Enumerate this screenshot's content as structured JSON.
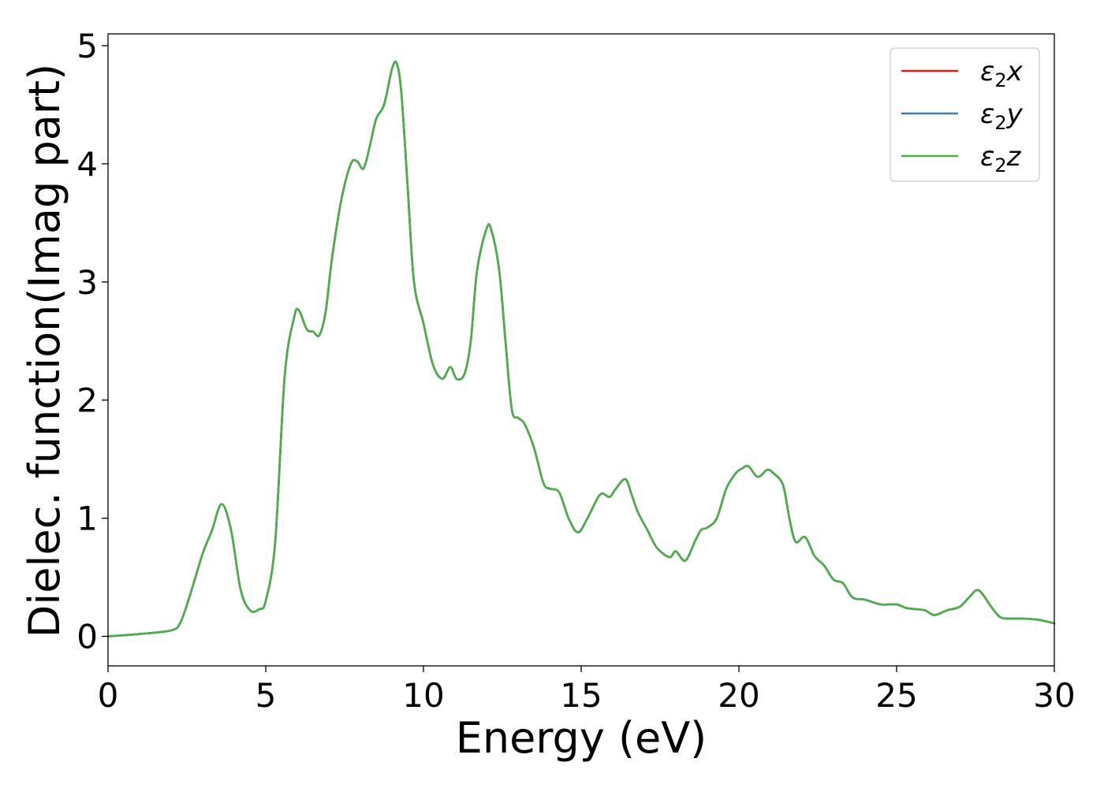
{
  "chart_data": {
    "type": "line",
    "xlabel": "Energy (eV)",
    "ylabel": "Dielec. function(Imag part)",
    "xlim": [
      0,
      30
    ],
    "ylim": [
      -0.25,
      5.1
    ],
    "xticks": [
      "0",
      "5",
      "10",
      "15",
      "20",
      "25",
      "30"
    ],
    "yticks": [
      "0",
      "1",
      "2",
      "3",
      "4",
      "5"
    ],
    "grid": false,
    "legend_position": "top-right",
    "series": [
      {
        "name": "ε₂x",
        "legend": {
          "base": "ε",
          "sub": "2",
          "suffix": "x"
        },
        "color": "#e41a1c",
        "x": [
          0,
          1,
          2,
          2.3,
          2.6,
          3.0,
          3.3,
          3.6,
          3.9,
          4.2,
          4.5,
          4.8,
          5.0,
          5.3,
          5.6,
          5.9,
          6.05,
          6.3,
          6.5,
          6.7,
          6.9,
          7.1,
          7.4,
          7.7,
          7.9,
          8.1,
          8.3,
          8.5,
          8.75,
          9.0,
          9.15,
          9.3,
          9.5,
          9.7,
          10.0,
          10.3,
          10.6,
          10.85,
          11.05,
          11.3,
          11.5,
          11.7,
          12.0,
          12.15,
          12.4,
          12.6,
          12.8,
          13.0,
          13.2,
          13.5,
          13.8,
          14.0,
          14.3,
          14.6,
          14.9,
          15.2,
          15.6,
          15.9,
          16.1,
          16.4,
          16.6,
          16.8,
          17.1,
          17.4,
          17.8,
          18.0,
          18.3,
          18.6,
          18.8,
          19.0,
          19.3,
          19.6,
          19.9,
          20.1,
          20.3,
          20.6,
          20.9,
          21.1,
          21.4,
          21.6,
          21.8,
          22.1,
          22.4,
          22.7,
          23.0,
          23.3,
          23.6,
          24.0,
          24.5,
          25.0,
          25.3,
          25.6,
          25.9,
          26.2,
          26.6,
          27.0,
          27.3,
          27.6,
          28.0,
          28.3,
          28.7,
          29.0,
          29.5,
          30.0
        ],
        "y": [
          0.0,
          0.02,
          0.05,
          0.12,
          0.35,
          0.7,
          0.9,
          1.12,
          0.9,
          0.4,
          0.22,
          0.23,
          0.3,
          0.8,
          2.2,
          2.7,
          2.76,
          2.6,
          2.58,
          2.55,
          2.75,
          3.2,
          3.7,
          4.0,
          4.02,
          3.96,
          4.15,
          4.38,
          4.5,
          4.8,
          4.85,
          4.6,
          3.8,
          3.0,
          2.65,
          2.3,
          2.18,
          2.28,
          2.18,
          2.22,
          2.5,
          3.1,
          3.45,
          3.44,
          3.1,
          2.5,
          1.92,
          1.85,
          1.8,
          1.6,
          1.3,
          1.25,
          1.22,
          1.0,
          0.88,
          1.0,
          1.2,
          1.18,
          1.25,
          1.33,
          1.2,
          1.05,
          0.9,
          0.75,
          0.67,
          0.72,
          0.64,
          0.8,
          0.9,
          0.92,
          1.0,
          1.25,
          1.38,
          1.42,
          1.44,
          1.35,
          1.41,
          1.38,
          1.28,
          1.0,
          0.8,
          0.84,
          0.68,
          0.6,
          0.48,
          0.45,
          0.33,
          0.31,
          0.27,
          0.27,
          0.24,
          0.23,
          0.22,
          0.18,
          0.22,
          0.25,
          0.33,
          0.39,
          0.25,
          0.16,
          0.15,
          0.15,
          0.14,
          0.11
        ]
      },
      {
        "name": "ε₂y",
        "legend": {
          "base": "ε",
          "sub": "2",
          "suffix": "y"
        },
        "color": "#377eb8",
        "same_as": 0
      },
      {
        "name": "ε₂z",
        "legend": {
          "base": "ε",
          "sub": "2",
          "suffix": "z"
        },
        "color": "#4daf4a",
        "same_as": 0
      }
    ]
  }
}
